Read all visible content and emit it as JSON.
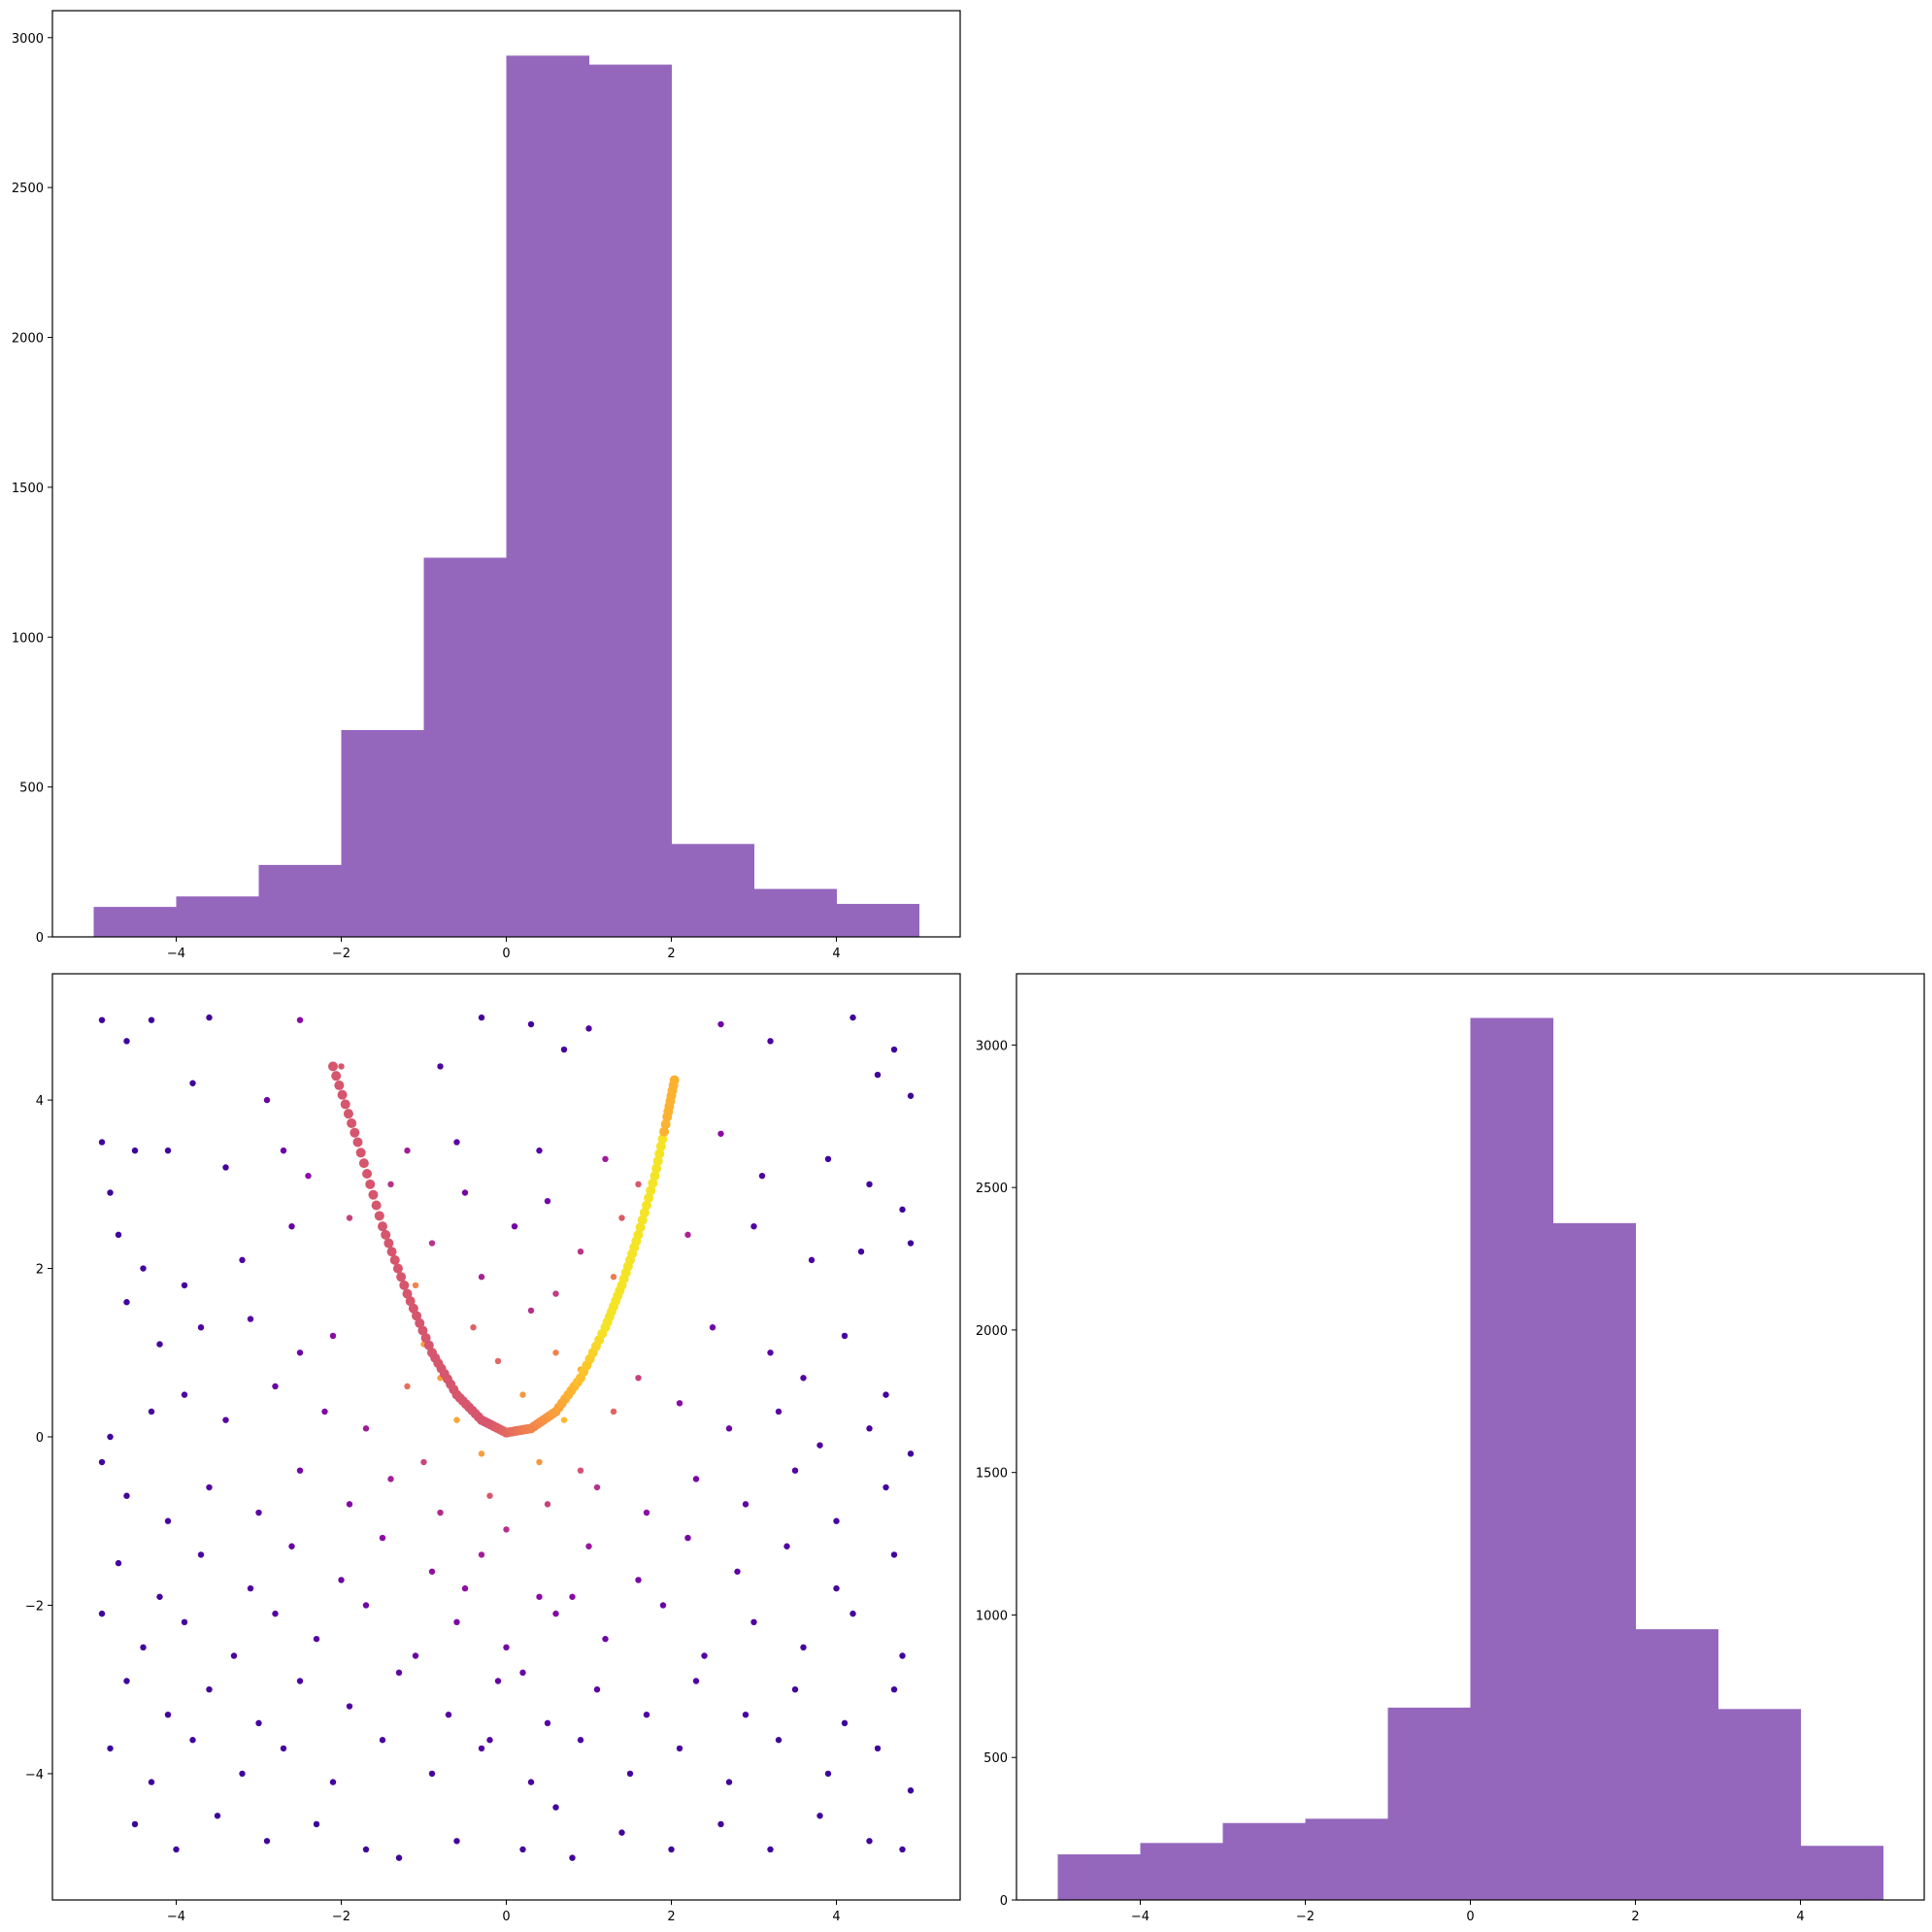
{
  "chart_data": [
    {
      "type": "bar",
      "title": "",
      "xlabel": "",
      "ylabel": "",
      "bin_edges": [
        -5,
        -4,
        -3,
        -2,
        -1,
        0,
        1,
        2,
        3,
        4,
        5
      ],
      "values": [
        100,
        135,
        240,
        690,
        1265,
        2940,
        2910,
        310,
        160,
        110
      ],
      "xlim": [
        -5.5,
        5.5
      ],
      "ylim": [
        0,
        3090
      ],
      "xticks": [
        -4,
        -2,
        0,
        2,
        4
      ],
      "xtick_labels": [
        "−4",
        "−2",
        "0",
        "2",
        "4"
      ],
      "yticks": [
        0,
        500,
        1000,
        1500,
        2000,
        2500,
        3000
      ],
      "ytick_labels": [
        "0",
        "500",
        "1000",
        "1500",
        "2000",
        "2500",
        "3000"
      ],
      "color": "#9467bd",
      "grid": false
    },
    {
      "type": "scatter",
      "title": "",
      "xlabel": "",
      "ylabel": "",
      "xlim": [
        -5.5,
        5.5
      ],
      "ylim": [
        -5.5,
        5.5
      ],
      "xticks": [
        -4,
        -2,
        0,
        2,
        4
      ],
      "xtick_labels": [
        "−4",
        "−2",
        "0",
        "2",
        "4"
      ],
      "yticks": [
        -4,
        -2,
        0,
        2,
        4
      ],
      "ytick_labels": [
        "−4",
        "−2",
        "0",
        "2",
        "4"
      ],
      "colormap": "plasma (colored by point density)",
      "grid": false,
      "points": [
        [
          -4.9,
          4.95
        ],
        [
          -4.3,
          4.95
        ],
        [
          -3.6,
          4.98
        ],
        [
          -2.5,
          4.95
        ],
        [
          -0.3,
          4.98
        ],
        [
          0.3,
          4.9
        ],
        [
          1.0,
          4.85
        ],
        [
          2.6,
          4.9
        ],
        [
          4.2,
          4.98
        ],
        [
          4.7,
          4.6
        ],
        [
          -4.6,
          4.7
        ],
        [
          -3.8,
          4.2
        ],
        [
          -2.9,
          4.0
        ],
        [
          -2.0,
          4.4
        ],
        [
          -0.8,
          4.4
        ],
        [
          0.7,
          4.6
        ],
        [
          3.2,
          4.7
        ],
        [
          4.5,
          4.3
        ],
        [
          4.9,
          4.05
        ],
        [
          -4.9,
          3.5
        ],
        [
          -4.8,
          2.9
        ],
        [
          -4.5,
          3.4
        ],
        [
          -4.1,
          3.4
        ],
        [
          -3.4,
          3.2
        ],
        [
          -2.7,
          3.4
        ],
        [
          -2.4,
          3.1
        ],
        [
          -1.2,
          3.4
        ],
        [
          -0.6,
          3.5
        ],
        [
          0.4,
          3.4
        ],
        [
          1.2,
          3.3
        ],
        [
          2.6,
          3.6
        ],
        [
          3.1,
          3.1
        ],
        [
          3.9,
          3.3
        ],
        [
          4.4,
          3.0
        ],
        [
          4.8,
          2.7
        ],
        [
          -4.7,
          2.4
        ],
        [
          -4.4,
          2.0
        ],
        [
          -3.9,
          1.8
        ],
        [
          -3.2,
          2.1
        ],
        [
          -2.6,
          2.5
        ],
        [
          -1.9,
          2.6
        ],
        [
          -0.9,
          2.3
        ],
        [
          0.1,
          2.5
        ],
        [
          0.9,
          2.2
        ],
        [
          1.4,
          2.6
        ],
        [
          2.2,
          2.4
        ],
        [
          3.0,
          2.5
        ],
        [
          3.7,
          2.1
        ],
        [
          4.3,
          2.2
        ],
        [
          4.9,
          2.3
        ],
        [
          -4.6,
          1.6
        ],
        [
          -4.2,
          1.1
        ],
        [
          -3.7,
          1.3
        ],
        [
          -3.1,
          1.4
        ],
        [
          -2.5,
          1.0
        ],
        [
          -2.1,
          1.2
        ],
        [
          -1.0,
          1.1
        ],
        [
          -0.4,
          1.3
        ],
        [
          0.3,
          1.5
        ],
        [
          0.6,
          1.0
        ],
        [
          2.5,
          1.3
        ],
        [
          3.2,
          1.0
        ],
        [
          3.6,
          0.7
        ],
        [
          4.1,
          1.2
        ],
        [
          4.6,
          0.5
        ],
        [
          -4.8,
          0.0
        ],
        [
          -4.3,
          0.3
        ],
        [
          -3.9,
          0.5
        ],
        [
          -3.4,
          0.2
        ],
        [
          -2.8,
          0.6
        ],
        [
          -2.2,
          0.3
        ],
        [
          -1.7,
          0.1
        ],
        [
          -1.2,
          0.6
        ],
        [
          1.6,
          0.7
        ],
        [
          2.1,
          0.4
        ],
        [
          2.7,
          0.1
        ],
        [
          3.3,
          0.3
        ],
        [
          3.8,
          -0.1
        ],
        [
          4.4,
          0.1
        ],
        [
          4.9,
          -0.2
        ],
        [
          -4.9,
          -0.3
        ],
        [
          -4.6,
          -0.7
        ],
        [
          -4.1,
          -1.0
        ],
        [
          -3.6,
          -0.6
        ],
        [
          -3.0,
          -0.9
        ],
        [
          -2.5,
          -0.4
        ],
        [
          -1.9,
          -0.8
        ],
        [
          -1.4,
          -0.5
        ],
        [
          -0.8,
          -0.9
        ],
        [
          -0.2,
          -0.7
        ],
        [
          0.5,
          -0.8
        ],
        [
          1.1,
          -0.6
        ],
        [
          1.7,
          -0.9
        ],
        [
          2.3,
          -0.5
        ],
        [
          2.9,
          -0.8
        ],
        [
          3.5,
          -0.4
        ],
        [
          4.0,
          -1.0
        ],
        [
          4.6,
          -0.6
        ],
        [
          -4.7,
          -1.5
        ],
        [
          -4.2,
          -1.9
        ],
        [
          -3.7,
          -1.4
        ],
        [
          -3.1,
          -1.8
        ],
        [
          -2.6,
          -1.3
        ],
        [
          -2.0,
          -1.7
        ],
        [
          -1.5,
          -1.2
        ],
        [
          -0.9,
          -1.6
        ],
        [
          -0.3,
          -1.4
        ],
        [
          0.4,
          -1.9
        ],
        [
          1.0,
          -1.3
        ],
        [
          1.6,
          -1.7
        ],
        [
          2.2,
          -1.2
        ],
        [
          2.8,
          -1.6
        ],
        [
          3.4,
          -1.3
        ],
        [
          4.0,
          -1.8
        ],
        [
          4.7,
          -1.4
        ],
        [
          -4.9,
          -2.1
        ],
        [
          -4.4,
          -2.5
        ],
        [
          -3.9,
          -2.2
        ],
        [
          -3.3,
          -2.6
        ],
        [
          -2.8,
          -2.1
        ],
        [
          -2.3,
          -2.4
        ],
        [
          -1.7,
          -2.0
        ],
        [
          -1.1,
          -2.6
        ],
        [
          -0.6,
          -2.2
        ],
        [
          0.0,
          -2.5
        ],
        [
          0.6,
          -2.1
        ],
        [
          1.2,
          -2.4
        ],
        [
          1.9,
          -2.0
        ],
        [
          2.4,
          -2.6
        ],
        [
          3.0,
          -2.2
        ],
        [
          3.6,
          -2.5
        ],
        [
          4.2,
          -2.1
        ],
        [
          4.8,
          -2.6
        ],
        [
          -4.6,
          -2.9
        ],
        [
          -4.1,
          -3.3
        ],
        [
          -3.6,
          -3.0
        ],
        [
          -3.0,
          -3.4
        ],
        [
          -2.5,
          -2.9
        ],
        [
          -1.9,
          -3.2
        ],
        [
          -1.3,
          -2.8
        ],
        [
          -0.7,
          -3.3
        ],
        [
          -0.1,
          -2.9
        ],
        [
          0.5,
          -3.4
        ],
        [
          1.1,
          -3.0
        ],
        [
          1.7,
          -3.3
        ],
        [
          2.3,
          -2.9
        ],
        [
          2.9,
          -3.3
        ],
        [
          3.5,
          -3.0
        ],
        [
          4.1,
          -3.4
        ],
        [
          4.7,
          -3.0
        ],
        [
          -4.8,
          -3.7
        ],
        [
          -4.3,
          -4.1
        ],
        [
          -3.8,
          -3.6
        ],
        [
          -3.2,
          -4.0
        ],
        [
          -2.7,
          -3.7
        ],
        [
          -2.1,
          -4.1
        ],
        [
          -1.5,
          -3.6
        ],
        [
          -0.9,
          -4.0
        ],
        [
          -0.3,
          -3.7
        ],
        [
          0.3,
          -4.1
        ],
        [
          0.9,
          -3.6
        ],
        [
          1.5,
          -4.0
        ],
        [
          2.1,
          -3.7
        ],
        [
          2.7,
          -4.1
        ],
        [
          3.3,
          -3.6
        ],
        [
          3.9,
          -4.0
        ],
        [
          4.5,
          -3.7
        ],
        [
          4.9,
          -4.2
        ],
        [
          -4.5,
          -4.6
        ],
        [
          -4.0,
          -4.9
        ],
        [
          -3.5,
          -4.5
        ],
        [
          -2.9,
          -4.8
        ],
        [
          -2.3,
          -4.6
        ],
        [
          -1.7,
          -4.9
        ],
        [
          -1.3,
          -5.0
        ],
        [
          -0.6,
          -4.8
        ],
        [
          0.2,
          -4.9
        ],
        [
          0.8,
          -5.0
        ],
        [
          1.4,
          -4.7
        ],
        [
          2.0,
          -4.9
        ],
        [
          2.6,
          -4.6
        ],
        [
          3.2,
          -4.9
        ],
        [
          3.8,
          -4.5
        ],
        [
          4.4,
          -4.8
        ],
        [
          4.8,
          -4.9
        ],
        [
          -1.4,
          3.0
        ],
        [
          -0.5,
          2.9
        ],
        [
          0.5,
          2.8
        ],
        [
          1.6,
          3.0
        ],
        [
          -1.1,
          1.8
        ],
        [
          -0.3,
          1.9
        ],
        [
          0.6,
          1.7
        ],
        [
          1.3,
          1.9
        ],
        [
          -0.8,
          0.7
        ],
        [
          -0.1,
          0.9
        ],
        [
          0.9,
          0.8
        ],
        [
          1.3,
          0.3
        ],
        [
          -0.6,
          0.2
        ],
        [
          0.7,
          0.2
        ],
        [
          0.2,
          0.5
        ],
        [
          -0.3,
          -0.2
        ],
        [
          0.4,
          -0.3
        ],
        [
          0.9,
          -0.4
        ],
        [
          -1.0,
          -0.3
        ],
        [
          0.0,
          -1.1
        ],
        [
          -0.5,
          -1.8
        ],
        [
          0.8,
          -1.9
        ],
        [
          0.2,
          -2.8
        ],
        [
          -0.2,
          -3.6
        ],
        [
          0.6,
          -4.4
        ]
      ],
      "curve": [
        [
          -2.1,
          4.4
        ],
        [
          -1.8,
          3.5
        ],
        [
          -1.5,
          2.5
        ],
        [
          -1.2,
          1.7
        ],
        [
          -0.9,
          1.0
        ],
        [
          -0.6,
          0.5
        ],
        [
          -0.3,
          0.2
        ],
        [
          0.0,
          0.05
        ],
        [
          0.3,
          0.1
        ],
        [
          0.6,
          0.3
        ],
        [
          0.9,
          0.7
        ],
        [
          1.2,
          1.3
        ],
        [
          1.4,
          1.8
        ],
        [
          1.6,
          2.4
        ],
        [
          1.8,
          3.1
        ],
        [
          1.95,
          3.8
        ],
        [
          2.05,
          4.3
        ]
      ]
    },
    {
      "type": "bar",
      "title": "",
      "xlabel": "",
      "ylabel": "",
      "bin_edges": [
        -5,
        -4,
        -3,
        -2,
        -1,
        0,
        1,
        2,
        3,
        4,
        5
      ],
      "values": [
        160,
        200,
        270,
        285,
        675,
        3095,
        2375,
        950,
        670,
        190
      ],
      "xlim": [
        -5.5,
        5.5
      ],
      "ylim": [
        0,
        3250
      ],
      "xticks": [
        -4,
        -2,
        0,
        2,
        4
      ],
      "xtick_labels": [
        "−4",
        "−2",
        "0",
        "2",
        "4"
      ],
      "yticks": [
        0,
        500,
        1000,
        1500,
        2000,
        2500,
        3000
      ],
      "ytick_labels": [
        "0",
        "500",
        "1000",
        "1500",
        "2000",
        "2500",
        "3000"
      ],
      "color": "#9467bd",
      "grid": false
    }
  ]
}
